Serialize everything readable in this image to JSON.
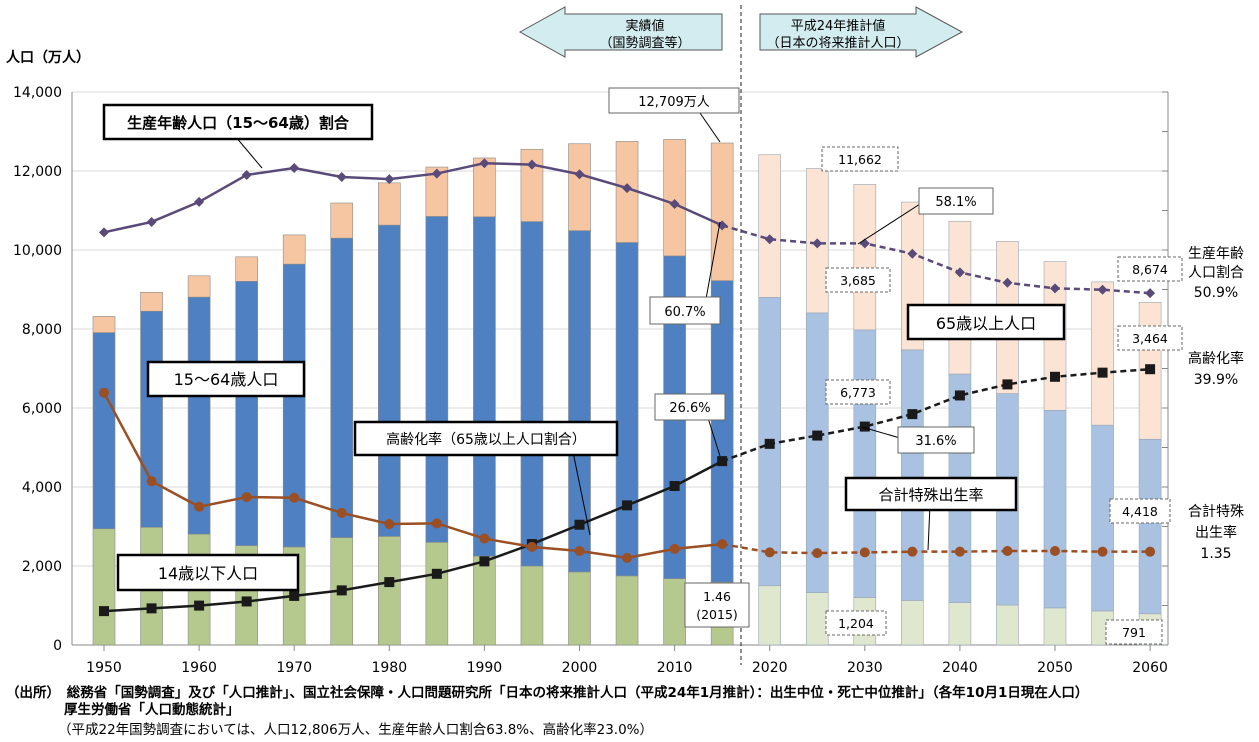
{
  "chart_data": {
    "type": "bar",
    "yaxis_left": {
      "label": "人口（万人）",
      "ylim": [
        0,
        14000
      ],
      "ticks": [
        "0",
        "2,000",
        "4,000",
        "6,000",
        "8,000",
        "10,000",
        "12,000",
        "14,000"
      ]
    },
    "x_ticks": [
      "1950",
      "1960",
      "1970",
      "1980",
      "1990",
      "2000",
      "2010",
      "2020",
      "2030",
      "2040",
      "2050",
      "2060"
    ],
    "years": [
      1950,
      1955,
      1960,
      1965,
      1970,
      1975,
      1980,
      1985,
      1990,
      1995,
      2000,
      2005,
      2010,
      2015,
      2020,
      2025,
      2030,
      2035,
      2040,
      2045,
      2050,
      2055,
      2060
    ],
    "projection_from_index": 14,
    "series": [
      {
        "name": "14歳以下人口",
        "values": [
          2943,
          2980,
          2807,
          2517,
          2482,
          2720,
          2750,
          2600,
          2250,
          2000,
          1850,
          1750,
          1680,
          1595,
          1500,
          1324,
          1204,
          1129,
          1073,
          1012,
          939,
          861,
          791
        ]
      },
      {
        "name": "15～64歳人口",
        "values": [
          4966,
          5470,
          6000,
          6690,
          7160,
          7580,
          7880,
          8250,
          8590,
          8720,
          8640,
          8440,
          8170,
          7629,
          7300,
          7084,
          6773,
          6343,
          5787,
          5353,
          5001,
          4706,
          4418
        ]
      },
      {
        "name": "65歳以上人口",
        "values": [
          410,
          480,
          540,
          620,
          740,
          890,
          1070,
          1250,
          1490,
          1830,
          2200,
          2560,
          2950,
          3485,
          3612,
          3657,
          3685,
          3741,
          3868,
          3856,
          3768,
          3626,
          3464
        ]
      }
    ],
    "totals_labels": {
      "total_2015": "12,709万人",
      "total_2030": "11,662",
      "total_2060": "8,674",
      "elderly_2030": "3,685",
      "elderly_2060": "3,464",
      "working_2030": "6,773",
      "working_2060": "4,418",
      "children_2030": "1,204",
      "children_2060": "791"
    },
    "lines": [
      {
        "name": "生産年齢人口（15～64歳）割合",
        "values": [
          59.7,
          61.2,
          64.1,
          68.0,
          69.0,
          67.7,
          67.4,
          68.2,
          69.7,
          69.5,
          68.1,
          66.1,
          63.8,
          60.7,
          58.7,
          58.1,
          58.1,
          56.6,
          53.9,
          52.4,
          51.6,
          51.4,
          50.9
        ]
      },
      {
        "name": "高齢化率（65歳以上人口割合）",
        "values": [
          4.9,
          5.3,
          5.7,
          6.3,
          7.1,
          7.9,
          9.1,
          10.3,
          12.1,
          14.6,
          17.4,
          20.2,
          23.0,
          26.6,
          29.1,
          30.3,
          31.6,
          33.4,
          36.1,
          37.7,
          38.8,
          39.4,
          39.9
        ]
      },
      {
        "name": "合計特殊出生率",
        "values": [
          3.65,
          2.37,
          2.0,
          2.14,
          2.13,
          1.91,
          1.75,
          1.76,
          1.54,
          1.42,
          1.36,
          1.26,
          1.39,
          1.46,
          1.34,
          1.33,
          1.34,
          1.35,
          1.35,
          1.36,
          1.36,
          1.35,
          1.35
        ]
      }
    ],
    "rate_axis_max": 8.0
  },
  "text": {
    "actual_line1": "実績値",
    "actual_line2": "（国勢調査等）",
    "proj_line1": "平成24年推計値",
    "proj_line2": "（日本の将来推計人口）",
    "label_working_ratio": "生産年齢人口（15～64歳）割合",
    "label_working_pop": "15～64歳人口",
    "label_aging": "高齢化率（65歳以上人口割合）",
    "label_children": "14歳以下人口",
    "label_elderly": "65歳以上人口",
    "label_tfr": "合計特殊出生率",
    "val_total_2015": "12,709万人",
    "val_wr_2015": "60.7%",
    "val_wr_2030": "58.1%",
    "val_aging_2015": "26.6%",
    "val_aging_2030": "31.6%",
    "val_tfr_2015a": "1.46",
    "val_tfr_2015b": "(2015)",
    "right_wr_1": "生産年齢",
    "right_wr_2": "人口割合",
    "right_wr_3": "50.9%",
    "right_aging_1": "高齢化率",
    "right_aging_2": "39.9%",
    "right_tfr_1": "合計特殊",
    "right_tfr_2": "出生率",
    "right_tfr_3": "1.35",
    "note1": "（出所）　総務省「国勢調査」及び「人口推計」、国立社会保障・人口問題研究所「日本の将来推計人口（平成24年1月推計）：出生中位・死亡中位推計」（各年10月1日現在人口）",
    "note2": "厚生労働省「人口動態統計」",
    "note3": "（平成22年国勢調査においては、人口12,806万人、生産年齢人口割合63.8%、高齢化率23.0%）"
  },
  "colors": {
    "child_actual": "#b5c98e",
    "child_proj": "#dfe8cf",
    "working_actual": "#4f81c2",
    "working_proj": "#a9c2e2",
    "elderly_actual": "#f6c6a3",
    "elderly_proj": "#fbe4d4",
    "working_ratio_line": "#5a4a7a",
    "aging_line": "#1a1a1a",
    "tfr_line": "#9a4f24",
    "arrow_fill": "#d3ecf0"
  }
}
